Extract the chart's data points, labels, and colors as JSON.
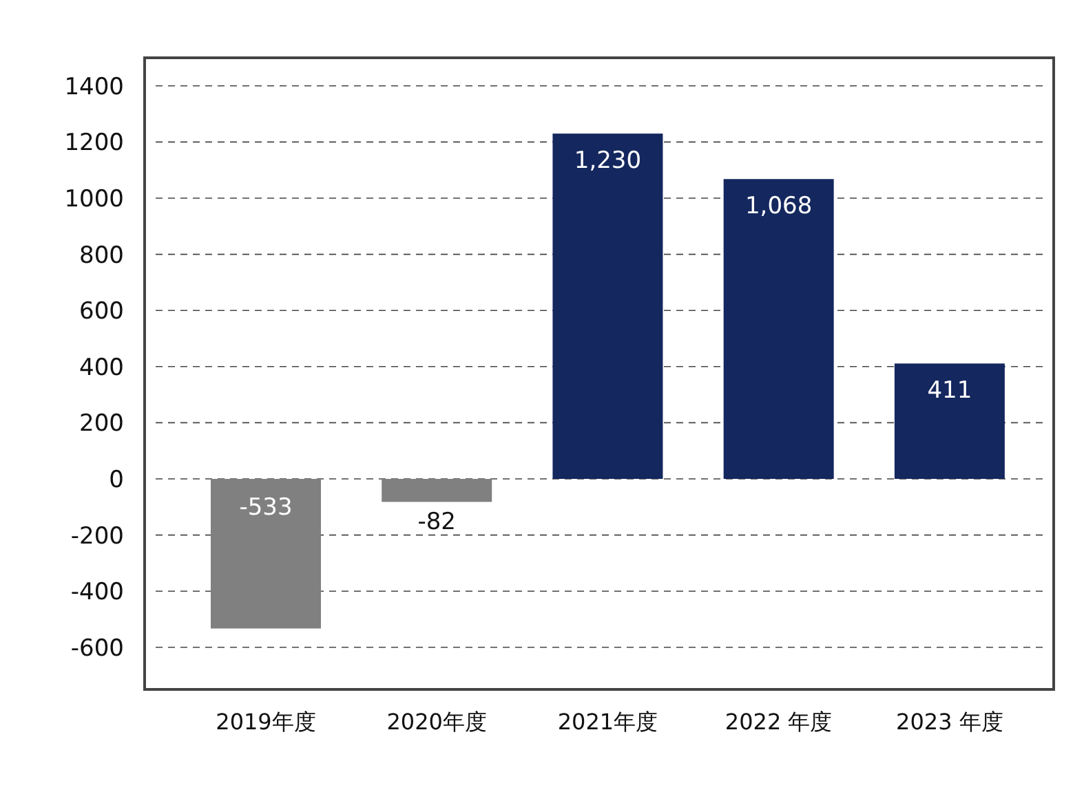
{
  "chart_data": {
    "type": "bar",
    "categories": [
      "2019年度",
      "2020年度",
      "2021年度",
      "2022 年度",
      "2023 年度"
    ],
    "values": [
      -533,
      -82,
      1230,
      1068,
      411
    ],
    "value_labels": [
      "-533",
      "-82",
      "1,230",
      "1,068",
      "411"
    ],
    "colors": [
      "#808080",
      "#808080",
      "#14275e",
      "#14275e",
      "#14275e"
    ],
    "ylim": [
      -750,
      1500
    ],
    "yticks": [
      -600,
      -400,
      -200,
      0,
      200,
      400,
      600,
      800,
      1000,
      1200,
      1400
    ],
    "grid": "y"
  }
}
